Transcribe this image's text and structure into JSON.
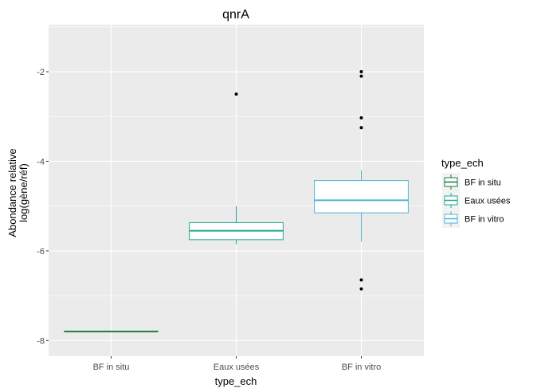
{
  "chart_data": {
    "type": "boxplot",
    "title": "qnrA",
    "xlabel": "type_ech",
    "ylabel_lines": [
      "Abondance relative",
      "log(gène/réf)"
    ],
    "ylim": [
      -8.35,
      -0.95
    ],
    "yticks": [
      -8,
      -6,
      -4,
      -2
    ],
    "ytick_labels": [
      "-8",
      "-6",
      "-4",
      "-2"
    ],
    "grid": true,
    "legend": {
      "title": "type_ech",
      "position": "right",
      "items": [
        "BF in situ",
        "Eaux usées",
        "BF in vitro"
      ]
    },
    "categories": [
      "BF in situ",
      "Eaux usées",
      "BF in vitro"
    ],
    "colors": [
      "#1b7a3e",
      "#1fa98d",
      "#4eb3d3"
    ],
    "boxes": [
      {
        "category": "BF in situ",
        "whisker_low": -7.8,
        "q1": -7.8,
        "median": -7.8,
        "q3": -7.8,
        "whisker_high": -7.8,
        "outliers": []
      },
      {
        "category": "Eaux usées",
        "whisker_low": -5.85,
        "q1": -5.75,
        "median": -5.55,
        "q3": -5.37,
        "whisker_high": -5.0,
        "outliers": [
          -2.5
        ]
      },
      {
        "category": "BF in vitro",
        "whisker_low": -5.8,
        "q1": -5.15,
        "median": -4.87,
        "q3": -4.43,
        "whisker_high": -4.2,
        "outliers": [
          -2.0,
          -2.1,
          -3.03,
          -3.25,
          -6.65,
          -6.85
        ]
      }
    ]
  }
}
